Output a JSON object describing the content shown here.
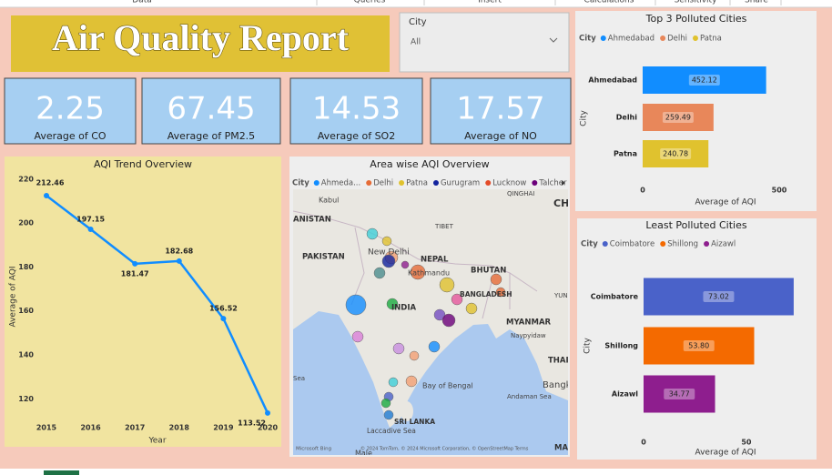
{
  "ribbon": [
    "Data",
    "Queries",
    "Insert",
    "Calculations",
    "Sensitivity",
    "Share"
  ],
  "header": {
    "title": "Air Quality Report"
  },
  "slicer": {
    "label": "City",
    "value": "All"
  },
  "cards": [
    {
      "value": 2.25,
      "label": "Average of CO"
    },
    {
      "value": 67.45,
      "label": "Average of PM2.5"
    },
    {
      "value": 14.53,
      "label": "Average of SO2"
    },
    {
      "value": 17.57,
      "label": "Average of NO"
    }
  ],
  "chart_data": [
    {
      "type": "line",
      "title": "AQI Trend Overview",
      "x_label": "Year",
      "y_label": "Average of AQI",
      "x": [
        2015,
        2016,
        2017,
        2018,
        2019,
        2020
      ],
      "values": [
        212.46,
        197.15,
        181.47,
        182.68,
        156.52,
        113.52
      ],
      "color": "#118dff",
      "xlim": [
        2015,
        2020
      ],
      "xticks": [
        2015,
        2016,
        2017,
        2018,
        2019,
        2020
      ],
      "ylim": [
        111,
        222
      ],
      "yticks": [
        120,
        140,
        160,
        180,
        200,
        220
      ],
      "grid": false
    },
    {
      "type": "map",
      "title": "Area wise AQI Overview",
      "legend_title": "City",
      "series": [
        {
          "name": "Ahmeda...",
          "color": "#118dff"
        },
        {
          "name": "Delhi",
          "color": "#e66c37"
        },
        {
          "name": "Patna",
          "color": "#e0c22e"
        },
        {
          "name": "Gurugram",
          "color": "#12239e"
        },
        {
          "name": "Lucknow",
          "color": "#e44c2a"
        },
        {
          "name": "Talcher",
          "color": "#6b007b"
        }
      ],
      "places": [
        "Kabul",
        "ANISTAN",
        "PAKISTAN",
        "TIBET",
        "New Delhi",
        "NEPAL",
        "Kathmandu",
        "BHUTAN",
        "BANGLADESH",
        "INDIA",
        "MYANMAR",
        "Naypyidaw",
        "Bay of Bengal",
        "Andaman Sea",
        "SRI LANKA",
        "Laccadive Sea",
        "Male",
        "QINGHAI",
        "CH",
        "THAI",
        "Bangk",
        "YUN",
        "Sea",
        "MA"
      ],
      "provider": "Microsoft Bing",
      "attribution": "© 2024 TomTom, © 2024 Microsoft Corporation, © OpenStreetMap  Terms"
    },
    {
      "type": "hbar",
      "title": "Top 3 Polluted Cities",
      "legend_title": "City",
      "x_label": "Average of AQI",
      "y_label": "City",
      "categories": [
        "Ahmedabad",
        "Delhi",
        "Patna"
      ],
      "values": [
        452.12,
        259.49,
        240.78
      ],
      "colors": [
        "#118dff",
        "#e8875a",
        "#e0c22e"
      ],
      "xlim": [
        0,
        540
      ],
      "xticks": [
        0,
        500
      ]
    },
    {
      "type": "hbar",
      "title": "Least Polluted Cities",
      "legend_title": "City",
      "x_label": "Average of AQI",
      "y_label": "City",
      "categories": [
        "Coimbatore",
        "Shillong",
        "Aizawl"
      ],
      "values": [
        73.02,
        53.8,
        34.77
      ],
      "value_labels": [
        "73.02",
        "53.80",
        "34.77"
      ],
      "colors": [
        "#4a62c9",
        "#f46a00",
        "#8e1e8e"
      ],
      "xlim": [
        0,
        73.5
      ],
      "xticks": [
        0,
        50
      ]
    }
  ]
}
